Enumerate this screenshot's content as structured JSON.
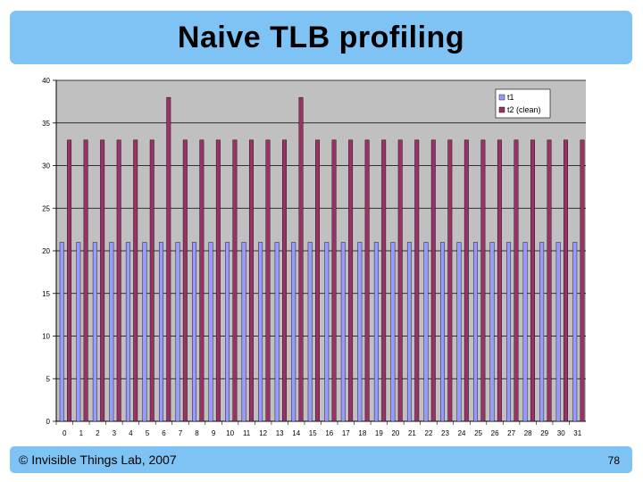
{
  "slide": {
    "title": "Naive TLB profiling",
    "footer_left": "© Invisible Things Lab, 2007",
    "page_number": "78"
  },
  "colors": {
    "title_bar": "#7fc3f4",
    "plot_bg": "#c0c0c0",
    "series_t1": "#9999ff",
    "series_t2": "#993366"
  },
  "chart_data": {
    "type": "bar",
    "categories": [
      "0",
      "1",
      "2",
      "3",
      "4",
      "5",
      "6",
      "7",
      "8",
      "9",
      "10",
      "11",
      "12",
      "13",
      "14",
      "15",
      "16",
      "17",
      "18",
      "19",
      "20",
      "21",
      "22",
      "23",
      "24",
      "25",
      "26",
      "27",
      "28",
      "29",
      "30",
      "31"
    ],
    "series": [
      {
        "name": "t1",
        "color": "#9999ff",
        "values": [
          21,
          21,
          21,
          21,
          21,
          21,
          21,
          21,
          21,
          21,
          21,
          21,
          21,
          21,
          21,
          21,
          21,
          21,
          21,
          21,
          21,
          21,
          21,
          21,
          21,
          21,
          21,
          21,
          21,
          21,
          21,
          21
        ]
      },
      {
        "name": "t2 (clean)",
        "color": "#993366",
        "values": [
          33,
          33,
          33,
          33,
          33,
          33,
          38,
          33,
          33,
          33,
          33,
          33,
          33,
          33,
          38,
          33,
          33,
          33,
          33,
          33,
          33,
          33,
          33,
          33,
          33,
          33,
          33,
          33,
          33,
          33,
          33,
          33
        ]
      }
    ],
    "yticks": [
      "0",
      "5",
      "10",
      "15",
      "20",
      "25",
      "30",
      "35",
      "40"
    ],
    "ylim": [
      0,
      40
    ],
    "grid": true,
    "legend_position": "top-right"
  }
}
